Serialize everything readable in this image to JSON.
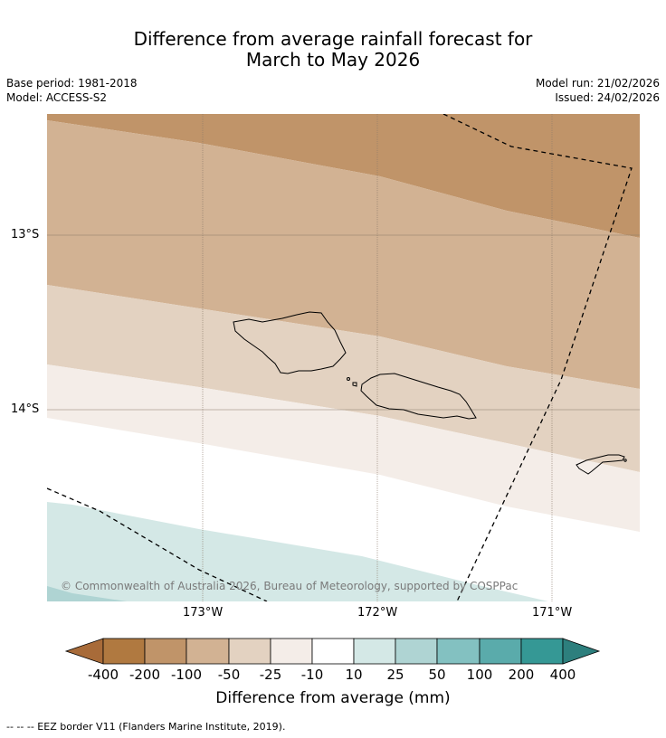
{
  "title": {
    "line1": "Difference from average rainfall forecast for",
    "line2": "March to May 2026"
  },
  "meta": {
    "base_period": "Base period: 1981-2018",
    "model": "Model: ACCESS-S2",
    "model_run": "Model run: 21/02/2026",
    "issued": "Issued: 24/02/2026"
  },
  "axes": {
    "lat_labels": [
      "13°S",
      "14°S"
    ],
    "lon_labels": [
      "173°W",
      "172°W",
      "171°W"
    ]
  },
  "copyright": "© Commonwealth of Australia 2026, Bureau of Meteorology, supported by COSPPac",
  "colorbar": {
    "title": "Difference from average (mm)",
    "ticks": [
      "-400",
      "-200",
      "-100",
      "-50",
      "-25",
      "-10",
      "10",
      "25",
      "50",
      "100",
      "200",
      "400"
    ],
    "colors": [
      "#a86b39",
      "#b07940",
      "#c09469",
      "#d2b293",
      "#e3d2c1",
      "#f4ede8",
      "#ffffff",
      "#d4e8e6",
      "#afd4d3",
      "#83c1c1",
      "#5aabab",
      "#359895",
      "#2d7f7d"
    ]
  },
  "footer": "--  --  -- EEZ border V11 (Flanders Marine Institute, 2019)."
}
